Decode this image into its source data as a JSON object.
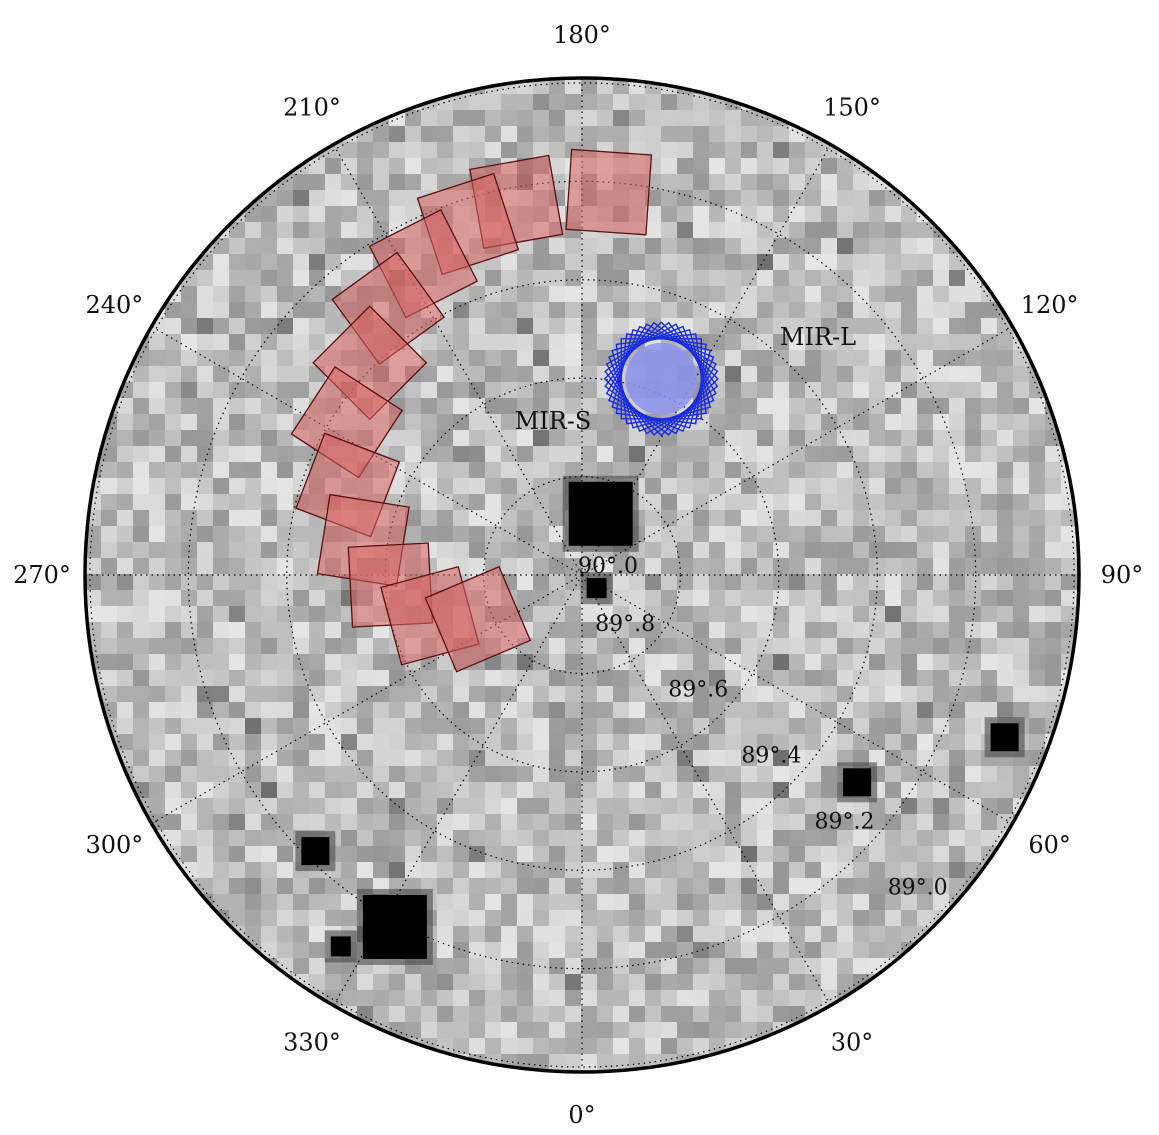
{
  "chart_data": {
    "type": "polar",
    "projection": "polar (north celestial pole)",
    "angular_labels": [
      {
        "deg": 0,
        "text": "0°"
      },
      {
        "deg": 30,
        "text": "30°"
      },
      {
        "deg": 60,
        "text": "60°"
      },
      {
        "deg": 90,
        "text": "90°"
      },
      {
        "deg": 120,
        "text": "120°"
      },
      {
        "deg": 150,
        "text": "150°"
      },
      {
        "deg": 180,
        "text": "180°"
      },
      {
        "deg": 210,
        "text": "210°"
      },
      {
        "deg": 240,
        "text": "240°"
      },
      {
        "deg": 270,
        "text": "270°"
      },
      {
        "deg": 300,
        "text": "300°"
      },
      {
        "deg": 330,
        "text": "330°"
      }
    ],
    "radial_labels": [
      {
        "dec": 90.0,
        "text": "90°.0"
      },
      {
        "dec": 89.8,
        "text": "89°.8"
      },
      {
        "dec": 89.6,
        "text": "89°.6"
      },
      {
        "dec": 89.4,
        "text": "89°.4"
      },
      {
        "dec": 89.2,
        "text": "89°.2"
      },
      {
        "dec": 89.0,
        "text": "89°.0"
      }
    ],
    "dec_range": [
      88.99,
      90.0
    ],
    "grid": true,
    "background": "grayscale sky image",
    "regions": [
      {
        "name": "MIR-S",
        "label": "MIR-S",
        "shape": "square",
        "count": 12,
        "center": {
          "ra": 158,
          "dec": 89.57
        },
        "rotation_step_deg": 7.5,
        "edge_color": "#1a2be6",
        "fill_color": "#8d94f0"
      },
      {
        "name": "MIR-L",
        "label": "MIR-L",
        "shape": "square",
        "edge_color": "#5a1010",
        "fill_color": "#d96464",
        "fields": [
          {
            "ra": 176,
            "dec": 89.22
          },
          {
            "ra": 190,
            "dec": 89.23
          },
          {
            "ra": 198,
            "dec": 89.25
          },
          {
            "ra": 207,
            "dec": 89.29
          },
          {
            "ra": 216,
            "dec": 89.33
          },
          {
            "ra": 225,
            "dec": 89.39
          },
          {
            "ra": 237,
            "dec": 89.43
          },
          {
            "ra": 249,
            "dec": 89.49
          },
          {
            "ra": 261,
            "dec": 89.55
          },
          {
            "ra": 273,
            "dec": 89.61
          },
          {
            "ra": 285,
            "dec": 89.68
          },
          {
            "ra": 293,
            "dec": 89.77
          }
        ]
      }
    ],
    "bright_sources": [
      {
        "ra": 163,
        "dec": 89.87,
        "size": "large"
      },
      {
        "ra": 48,
        "dec": 89.96,
        "size": "small"
      },
      {
        "ra": 69,
        "dec": 89.08,
        "size": "medium"
      },
      {
        "ra": 53,
        "dec": 89.3,
        "size": "medium"
      },
      {
        "ra": 316,
        "dec": 89.22,
        "size": "medium"
      },
      {
        "ra": 332,
        "dec": 89.19,
        "size": "large"
      },
      {
        "ra": 327,
        "dec": 89.1,
        "size": "small"
      }
    ]
  }
}
